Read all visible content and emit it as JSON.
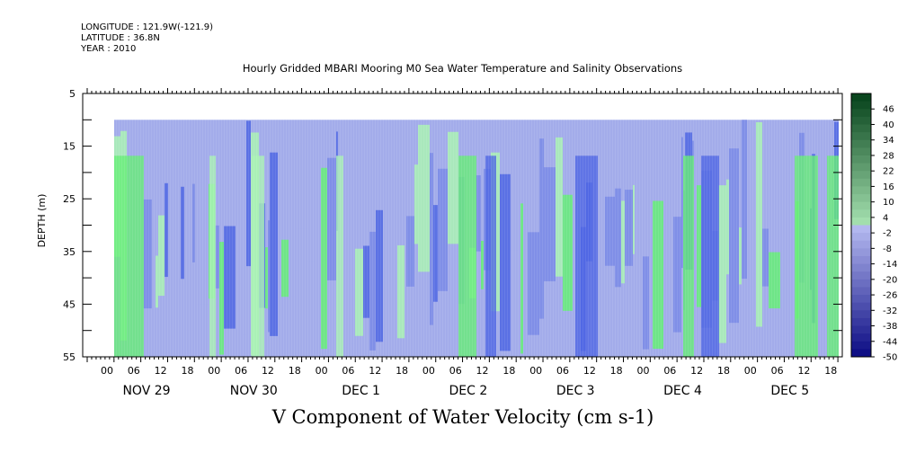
{
  "header": {
    "longitude": "LONGITUDE : 121.9W(-121.9)",
    "latitude": "LATITUDE : 36.8N",
    "year": "YEAR : 2010"
  },
  "colors": {
    "positive": "#66ee77",
    "light_positive": "#aaf2b4",
    "negative_light": "#a3acea",
    "negative_mid": "#7a8ae6",
    "negative_strong": "#4f66e3",
    "background": "#ffffff"
  },
  "chart_data": {
    "type": "heatmap",
    "title": "Hourly Gridded MBARI Mooring M0 Sea Water Temperature and Salinity Observations",
    "xlabel": "V Component of Water Velocity (cm s-1)",
    "ylabel": "DEPTH (m)",
    "ylim": [
      55,
      5
    ],
    "y_ticks": [
      "5",
      "15",
      "25",
      "35",
      "45",
      "55"
    ],
    "x_hour_labels": [
      "00",
      "06",
      "12",
      "18",
      "00",
      "06",
      "12",
      "18",
      "00",
      "06",
      "12",
      "18",
      "00",
      "06",
      "12",
      "18",
      "00",
      "06",
      "12",
      "18",
      "00",
      "06",
      "12",
      "18",
      "00",
      "06",
      "12",
      "18"
    ],
    "day_labels": [
      "NOV 29",
      "NOV 30",
      "DEC  1",
      "DEC  2",
      "DEC  3",
      "DEC  4",
      "DEC  5"
    ],
    "colorbar": {
      "levels": [
        "46",
        "40",
        "34",
        "28",
        "22",
        "16",
        "10",
        "4",
        "-2",
        "-8",
        "-14",
        "-20",
        "-26",
        "-32",
        "-38",
        "-44",
        "-50"
      ],
      "range": [
        -50,
        52
      ]
    },
    "data_depth_range": [
      10,
      55
    ]
  }
}
